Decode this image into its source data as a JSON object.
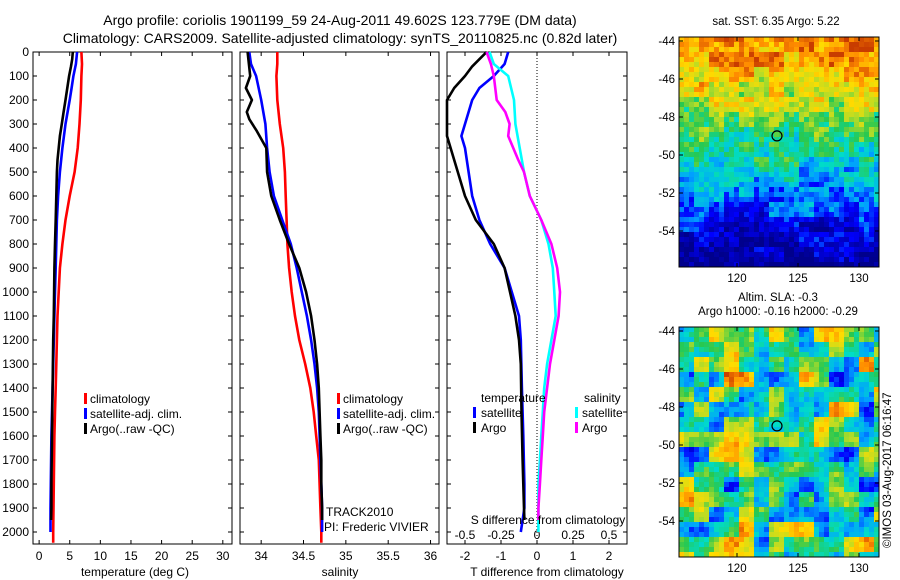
{
  "header": {
    "line1": "Argo profile: coriolis 1901199_59 24-Aug-2011 49.602S 123.779E (DM data)",
    "line2": "Climatology: CARS2009. Satellite-adjusted climatology: synTS_20110825.nc (0.82d later)"
  },
  "depth_ticks": [
    "0",
    "100",
    "200",
    "300",
    "400",
    "500",
    "600",
    "700",
    "800",
    "900",
    "1000",
    "1100",
    "1200",
    "1300",
    "1400",
    "1500",
    "1600",
    "1700",
    "1800",
    "1900",
    "2000"
  ],
  "colors": {
    "climatology": "#ff0000",
    "satellite": "#0000ff",
    "argo": "#000000",
    "sal_satellite": "#00ffff",
    "sal_argo": "#ff00ff"
  },
  "legend_profiles": [
    "climatology",
    "satellite-adj. clim.",
    "Argo(..raw -QC)"
  ],
  "track": {
    "line1": "TRACK2010",
    "line2": "PI: Frederic VIVIER"
  },
  "diff_legend": {
    "temp_title": "temperature",
    "sal_title": "salinity",
    "temp_sat": "satellite",
    "temp_argo": "Argo",
    "sal_sat": "satellite",
    "sal_argo": "Argo"
  },
  "map_top": {
    "title": "sat. SST: 6.35 Argo: 5.22"
  },
  "map_bottom": {
    "title1": "Altim. SLA: -0.3",
    "title2": "Argo h1000: -0.16 h2000: -0.29"
  },
  "map_axes": {
    "lat_ticks": [
      "-44",
      "-46",
      "-48",
      "-50",
      "-52",
      "-54"
    ],
    "lon_ticks": [
      "120",
      "125",
      "130"
    ]
  },
  "watermark": "©IMOS 03-Aug-2017 06:16:47",
  "chart_data": [
    {
      "type": "line",
      "xlabel": "temperature (deg C)",
      "ylabel": "",
      "x_ticks": [
        "0",
        "5",
        "10",
        "15",
        "20",
        "25",
        "30"
      ],
      "xlim": [
        -1,
        31.5
      ],
      "ylim": [
        0,
        2050
      ],
      "series": [
        {
          "name": "climatology",
          "color": "#ff0000",
          "points": [
            [
              6.9,
              0
            ],
            [
              7.0,
              50
            ],
            [
              6.9,
              100
            ],
            [
              6.8,
              200
            ],
            [
              6.6,
              300
            ],
            [
              6.3,
              400
            ],
            [
              5.8,
              500
            ],
            [
              5.0,
              600
            ],
            [
              4.3,
              700
            ],
            [
              3.8,
              800
            ],
            [
              3.4,
              900
            ],
            [
              3.2,
              1000
            ],
            [
              3.0,
              1100
            ],
            [
              2.9,
              1200
            ],
            [
              2.8,
              1300
            ],
            [
              2.7,
              1400
            ],
            [
              2.6,
              1500
            ],
            [
              2.5,
              1600
            ],
            [
              2.45,
              1700
            ],
            [
              2.4,
              1800
            ],
            [
              2.35,
              1900
            ],
            [
              2.3,
              2000
            ],
            [
              2.3,
              2045
            ]
          ]
        },
        {
          "name": "satellite-adj. clim.",
          "color": "#0000ff",
          "points": [
            [
              6.2,
              0
            ],
            [
              6.0,
              50
            ],
            [
              5.6,
              100
            ],
            [
              5.3,
              150
            ],
            [
              5.0,
              200
            ],
            [
              4.3,
              300
            ],
            [
              3.8,
              400
            ],
            [
              3.4,
              500
            ],
            [
              3.1,
              600
            ],
            [
              2.9,
              700
            ],
            [
              2.8,
              800
            ],
            [
              2.7,
              900
            ],
            [
              2.6,
              1000
            ],
            [
              2.5,
              1100
            ],
            [
              2.4,
              1200
            ],
            [
              2.3,
              1300
            ],
            [
              2.2,
              1400
            ],
            [
              2.1,
              1500
            ],
            [
              2.0,
              1600
            ],
            [
              1.95,
              1700
            ],
            [
              1.9,
              1800
            ],
            [
              1.85,
              1900
            ],
            [
              1.85,
              2000
            ]
          ]
        },
        {
          "name": "Argo(..raw -QC)",
          "color": "#000000",
          "points": [
            [
              5.5,
              0
            ],
            [
              5.4,
              30
            ],
            [
              5.2,
              60
            ],
            [
              4.9,
              100
            ],
            [
              4.6,
              150
            ],
            [
              4.3,
              200
            ],
            [
              4.0,
              250
            ],
            [
              3.7,
              300
            ],
            [
              3.4,
              350
            ],
            [
              3.2,
              400
            ],
            [
              3.0,
              450
            ],
            [
              2.9,
              500
            ],
            [
              2.8,
              600
            ],
            [
              2.7,
              700
            ],
            [
              2.6,
              800
            ],
            [
              2.5,
              900
            ],
            [
              2.45,
              1000
            ],
            [
              2.4,
              1100
            ],
            [
              2.3,
              1200
            ],
            [
              2.25,
              1300
            ],
            [
              2.2,
              1400
            ],
            [
              2.15,
              1500
            ],
            [
              2.1,
              1600
            ],
            [
              2.05,
              1700
            ],
            [
              2.0,
              1800
            ],
            [
              2.0,
              1900
            ],
            [
              1.95,
              1950
            ]
          ]
        }
      ]
    },
    {
      "type": "line",
      "xlabel": "salinity",
      "ylabel": "",
      "x_ticks": [
        "34",
        "34.5",
        "35",
        "35.5",
        "36"
      ],
      "xlim": [
        33.75,
        36.1
      ],
      "ylim": [
        0,
        2050
      ],
      "series": [
        {
          "name": "climatology",
          "color": "#ff0000",
          "points": [
            [
              34.19,
              0
            ],
            [
              34.19,
              50
            ],
            [
              34.18,
              100
            ],
            [
              34.19,
              200
            ],
            [
              34.22,
              300
            ],
            [
              34.26,
              400
            ],
            [
              34.28,
              500
            ],
            [
              34.29,
              600
            ],
            [
              34.3,
              700
            ],
            [
              34.31,
              800
            ],
            [
              34.33,
              900
            ],
            [
              34.36,
              1000
            ],
            [
              34.4,
              1100
            ],
            [
              34.45,
              1200
            ],
            [
              34.52,
              1300
            ],
            [
              34.58,
              1400
            ],
            [
              34.62,
              1500
            ],
            [
              34.65,
              1600
            ],
            [
              34.68,
              1700
            ],
            [
              34.69,
              1800
            ],
            [
              34.7,
              1900
            ],
            [
              34.71,
              2000
            ],
            [
              34.71,
              2045
            ]
          ]
        },
        {
          "name": "satellite-adj. clim.",
          "color": "#0000ff",
          "points": [
            [
              33.86,
              0
            ],
            [
              33.88,
              50
            ],
            [
              33.94,
              100
            ],
            [
              34.0,
              200
            ],
            [
              34.05,
              300
            ],
            [
              34.07,
              400
            ],
            [
              34.1,
              500
            ],
            [
              34.15,
              600
            ],
            [
              34.25,
              700
            ],
            [
              34.35,
              800
            ],
            [
              34.42,
              900
            ],
            [
              34.48,
              1000
            ],
            [
              34.54,
              1100
            ],
            [
              34.59,
              1200
            ],
            [
              34.63,
              1300
            ],
            [
              34.66,
              1400
            ],
            [
              34.68,
              1500
            ],
            [
              34.69,
              1600
            ],
            [
              34.7,
              1700
            ],
            [
              34.71,
              1800
            ],
            [
              34.72,
              1900
            ],
            [
              34.72,
              2000
            ]
          ]
        },
        {
          "name": "Argo(..raw -QC)",
          "color": "#000000",
          "points": [
            [
              33.84,
              0
            ],
            [
              33.87,
              100
            ],
            [
              33.82,
              150
            ],
            [
              33.89,
              200
            ],
            [
              33.83,
              250
            ],
            [
              33.86,
              280
            ],
            [
              33.95,
              330
            ],
            [
              34.06,
              400
            ],
            [
              34.07,
              500
            ],
            [
              34.12,
              600
            ],
            [
              34.22,
              700
            ],
            [
              34.33,
              800
            ],
            [
              34.45,
              900
            ],
            [
              34.53,
              1000
            ],
            [
              34.59,
              1100
            ],
            [
              34.63,
              1200
            ],
            [
              34.66,
              1300
            ],
            [
              34.68,
              1400
            ],
            [
              34.69,
              1500
            ],
            [
              34.7,
              1600
            ],
            [
              34.71,
              1700
            ],
            [
              34.71,
              1800
            ],
            [
              34.72,
              1900
            ],
            [
              34.72,
              1950
            ]
          ]
        }
      ]
    },
    {
      "type": "line",
      "x_title_top": "S difference from climatology",
      "xlabel": "T difference from climatology",
      "x_ticks": [
        "-2",
        "-1",
        "0",
        "1",
        "2"
      ],
      "x_ticks_top": [
        "-0.5",
        "-0.25",
        "0",
        "0.25",
        "0.5"
      ],
      "xlim": [
        -2.5,
        2.5
      ],
      "ylim": [
        0,
        2050
      ],
      "series": [
        {
          "name": "temperature satellite",
          "color": "#0000ff",
          "axis": "T",
          "points": [
            [
              -0.8,
              0
            ],
            [
              -0.9,
              50
            ],
            [
              -1.2,
              100
            ],
            [
              -1.6,
              150
            ],
            [
              -1.8,
              200
            ],
            [
              -1.9,
              250
            ],
            [
              -2.1,
              350
            ],
            [
              -2.0,
              400
            ],
            [
              -1.9,
              500
            ],
            [
              -1.8,
              600
            ],
            [
              -1.6,
              700
            ],
            [
              -1.3,
              800
            ],
            [
              -0.9,
              900
            ],
            [
              -0.7,
              1000
            ],
            [
              -0.5,
              1100
            ],
            [
              -0.45,
              1200
            ],
            [
              -0.42,
              1400
            ],
            [
              -0.38,
              1600
            ],
            [
              -0.35,
              1800
            ],
            [
              -0.35,
              1900
            ],
            [
              -0.45,
              2000
            ]
          ]
        },
        {
          "name": "temperature Argo",
          "color": "#000000",
          "axis": "T",
          "points": [
            [
              -1.4,
              0
            ],
            [
              -1.6,
              30
            ],
            [
              -1.8,
              60
            ],
            [
              -2.0,
              100
            ],
            [
              -2.3,
              150
            ],
            [
              -2.5,
              200
            ],
            [
              -2.5,
              350
            ],
            [
              -2.2,
              500
            ],
            [
              -2.0,
              600
            ],
            [
              -1.7,
              700
            ],
            [
              -1.2,
              800
            ],
            [
              -0.9,
              900
            ],
            [
              -0.75,
              1000
            ],
            [
              -0.6,
              1100
            ],
            [
              -0.5,
              1200
            ],
            [
              -0.45,
              1300
            ],
            [
              -0.43,
              1500
            ],
            [
              -0.4,
              1700
            ],
            [
              -0.38,
              1800
            ],
            [
              -0.36,
              1900
            ],
            [
              -0.35,
              1950
            ]
          ]
        },
        {
          "name": "salinity satellite",
          "color": "#00ffff",
          "axis": "S",
          "points": [
            [
              -0.33,
              0
            ],
            [
              -0.3,
              50
            ],
            [
              -0.2,
              100
            ],
            [
              -0.16,
              200
            ],
            [
              -0.15,
              300
            ],
            [
              -0.12,
              400
            ],
            [
              -0.09,
              500
            ],
            [
              -0.05,
              600
            ],
            [
              0.03,
              700
            ],
            [
              0.08,
              800
            ],
            [
              0.11,
              900
            ],
            [
              0.12,
              1000
            ],
            [
              0.13,
              1100
            ],
            [
              0.1,
              1200
            ],
            [
              0.07,
              1300
            ],
            [
              0.05,
              1400
            ],
            [
              0.04,
              1500
            ],
            [
              0.03,
              1600
            ],
            [
              0.02,
              1700
            ],
            [
              0.01,
              1800
            ],
            [
              0.01,
              1900
            ],
            [
              0.01,
              2000
            ]
          ]
        },
        {
          "name": "salinity Argo",
          "color": "#ff00ff",
          "axis": "S",
          "points": [
            [
              -0.35,
              0
            ],
            [
              -0.32,
              50
            ],
            [
              -0.3,
              100
            ],
            [
              -0.28,
              200
            ],
            [
              -0.22,
              250
            ],
            [
              -0.19,
              300
            ],
            [
              -0.2,
              350
            ],
            [
              -0.13,
              450
            ],
            [
              -0.09,
              500
            ],
            [
              -0.05,
              600
            ],
            [
              0.03,
              700
            ],
            [
              0.1,
              800
            ],
            [
              0.14,
              900
            ],
            [
              0.16,
              1000
            ],
            [
              0.15,
              1100
            ],
            [
              0.12,
              1200
            ],
            [
              0.09,
              1300
            ],
            [
              0.07,
              1400
            ],
            [
              0.05,
              1500
            ],
            [
              0.04,
              1600
            ],
            [
              0.03,
              1700
            ],
            [
              0.02,
              1800
            ],
            [
              0.01,
              1900
            ],
            [
              0.01,
              1950
            ]
          ]
        }
      ]
    }
  ]
}
